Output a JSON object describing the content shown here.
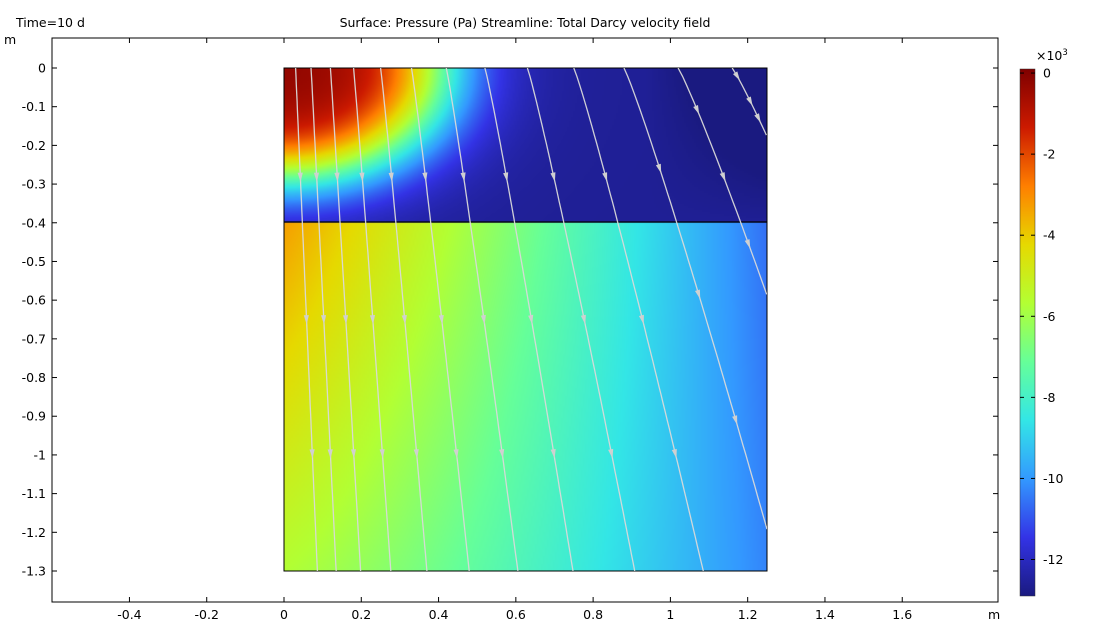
{
  "header": {
    "time_label": "Time=10 d",
    "title": "Surface: Pressure (Pa)  Streamline: Total Darcy velocity field",
    "y_unit": "m",
    "x_unit": "m"
  },
  "colorbar": {
    "multiplier_base": "×10",
    "multiplier_exp": "3",
    "ticks": [
      {
        "value": 0,
        "label": "0"
      },
      {
        "value": -2,
        "label": "-2"
      },
      {
        "value": -4,
        "label": "-4"
      },
      {
        "value": -6,
        "label": "-6"
      },
      {
        "value": -8,
        "label": "-8"
      },
      {
        "value": -10,
        "label": "-10"
      },
      {
        "value": -12,
        "label": "-12"
      }
    ],
    "range": [
      -12.9,
      0.1
    ],
    "colormap": [
      "#7f0000",
      "#cc1a00",
      "#ff7f00",
      "#e6d900",
      "#b3ff33",
      "#66ff99",
      "#33e6e6",
      "#3399ff",
      "#3333e6",
      "#1a1a80"
    ]
  },
  "chart_data": {
    "type": "heatmap",
    "title": "Surface: Pressure (Pa)  Streamline: Total Darcy velocity field",
    "xlabel": "m",
    "ylabel": "m",
    "xlim": [
      -0.6,
      1.8
    ],
    "ylim": [
      -1.38,
      0.08
    ],
    "x_ticks": [
      "-0.4",
      "-0.2",
      "0",
      "0.2",
      "0.4",
      "0.6",
      "0.8",
      "1",
      "1.2",
      "1.4",
      "1.6"
    ],
    "x_tick_values": [
      -0.4,
      -0.2,
      0,
      0.2,
      0.4,
      0.6,
      0.8,
      1.0,
      1.2,
      1.4,
      1.6
    ],
    "y_ticks": [
      "0",
      "-0.1",
      "-0.2",
      "-0.3",
      "-0.4",
      "-0.5",
      "-0.6",
      "-0.7",
      "-0.8",
      "-0.9",
      "-1",
      "-1.1",
      "-1.2",
      "-1.3"
    ],
    "y_tick_values": [
      0,
      -0.1,
      -0.2,
      -0.3,
      -0.4,
      -0.5,
      -0.6,
      -0.7,
      -0.8,
      -0.9,
      -1.0,
      -1.1,
      -1.2,
      -1.3
    ],
    "domain": {
      "x": [
        0,
        1.25
      ],
      "y": [
        -1.3,
        0
      ]
    },
    "interface_y": -0.4,
    "value_range": [
      -12.9,
      0
    ],
    "streamline_starts_x": [
      0.03,
      0.07,
      0.12,
      0.18,
      0.25,
      0.33,
      0.42,
      0.52,
      0.63,
      0.75,
      0.88,
      1.02,
      1.16
    ],
    "grid": false
  }
}
